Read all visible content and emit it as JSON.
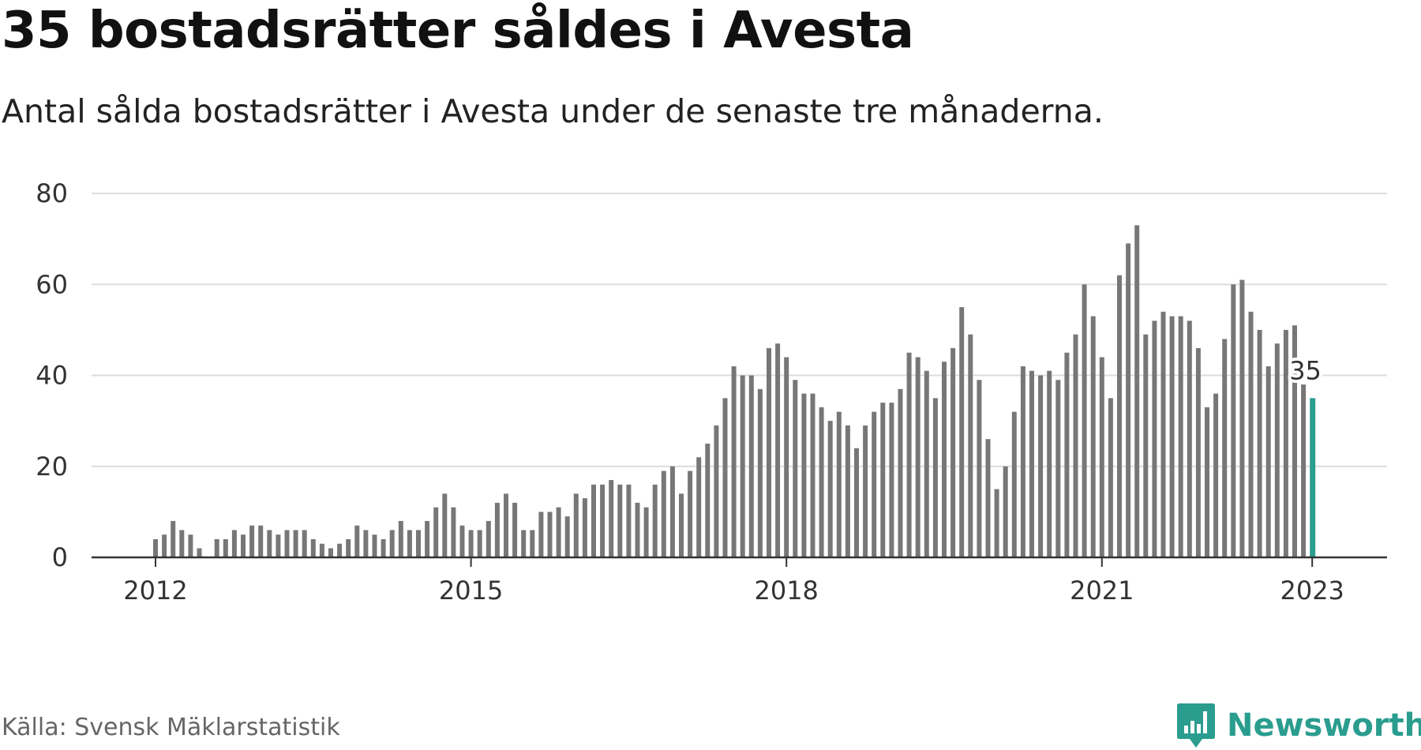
{
  "title": "35 bostadsrätter såldes i Avesta",
  "subtitle": "Antal sålda bostadsrätter i Avesta under de senaste tre månaderna.",
  "source": "Källa: Svensk Mäklarstatistik",
  "brand": {
    "name": "Newsworthy",
    "icon": "newsworthy-logo-icon",
    "color": "#2a9d8f"
  },
  "colors": {
    "bar": "#777777",
    "highlight": "#2a9d8f",
    "grid": "#dddddd",
    "axis": "#333333"
  },
  "chart_data": {
    "type": "bar",
    "title": "35 bostadsrätter såldes i Avesta",
    "ylim": [
      0,
      80
    ],
    "yticks": [
      "0",
      "20",
      "40",
      "60",
      "80"
    ],
    "xticks": [
      {
        "label": "2012",
        "index": 0
      },
      {
        "label": "2015",
        "index": 36
      },
      {
        "label": "2018",
        "index": 72
      },
      {
        "label": "2021",
        "index": 108
      },
      {
        "label": "2023",
        "index": 132
      }
    ],
    "grid": true,
    "x_start": "2012-01",
    "x_end": "2023-01",
    "highlight": {
      "label": "35",
      "value": 35
    },
    "values": [
      4,
      5,
      8,
      6,
      5,
      2,
      null,
      4,
      4,
      6,
      5,
      7,
      7,
      6,
      5,
      6,
      6,
      6,
      4,
      3,
      2,
      3,
      4,
      7,
      6,
      5,
      4,
      6,
      8,
      6,
      6,
      8,
      11,
      14,
      11,
      7,
      6,
      6,
      8,
      12,
      14,
      12,
      6,
      6,
      10,
      10,
      11,
      9,
      14,
      13,
      16,
      16,
      17,
      16,
      16,
      12,
      11,
      16,
      19,
      20,
      14,
      19,
      22,
      25,
      29,
      35,
      42,
      40,
      40,
      37,
      46,
      47,
      44,
      39,
      36,
      36,
      33,
      30,
      32,
      29,
      24,
      29,
      32,
      34,
      34,
      37,
      45,
      44,
      41,
      35,
      43,
      46,
      55,
      49,
      39,
      26,
      15,
      20,
      32,
      42,
      41,
      40,
      41,
      39,
      45,
      49,
      60,
      53,
      44,
      35,
      62,
      69,
      73,
      49,
      52,
      54,
      53,
      53,
      52,
      46,
      33,
      36,
      48,
      60,
      61,
      54,
      50,
      42,
      47,
      50,
      51,
      38,
      35
    ]
  }
}
